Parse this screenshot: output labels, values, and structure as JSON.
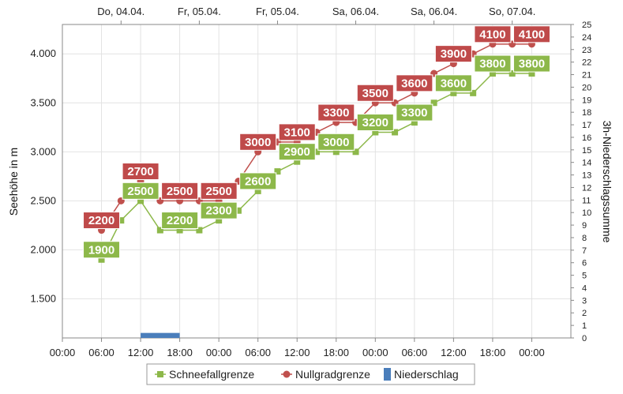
{
  "chart_data": {
    "type": "line",
    "ylabel": "Seehöhe in m",
    "y2label": "3h-Niederschlagssumme",
    "ylim": [
      1100,
      4300
    ],
    "y_ticks": [
      1500,
      2000,
      2500,
      3000,
      3500,
      4000
    ],
    "y_tick_labels": [
      "1.500",
      "2.000",
      "2.500",
      "3.000",
      "3.500",
      "4.000"
    ],
    "y2lim": [
      0,
      25
    ],
    "x_start_hour": 0,
    "x_end_hour": 78,
    "x_ticks": [
      {
        "h": 0,
        "label": "00:00"
      },
      {
        "h": 6,
        "label": "06:00"
      },
      {
        "h": 12,
        "label": "12:00"
      },
      {
        "h": 18,
        "label": "18:00"
      },
      {
        "h": 24,
        "label": "00:00"
      },
      {
        "h": 30,
        "label": "06:00"
      },
      {
        "h": 36,
        "label": "12:00"
      },
      {
        "h": 42,
        "label": "18:00"
      },
      {
        "h": 48,
        "label": "00:00"
      },
      {
        "h": 54,
        "label": "06:00"
      },
      {
        "h": 60,
        "label": "12:00"
      },
      {
        "h": 66,
        "label": "18:00"
      },
      {
        "h": 72,
        "label": "00:00"
      }
    ],
    "top_labels": [
      {
        "h": 9,
        "label": "Do, 04.04."
      },
      {
        "h": 21,
        "label": "Fr, 05.04."
      },
      {
        "h": 33,
        "label": "Fr, 05.04."
      },
      {
        "h": 45,
        "label": "Sa, 06.04."
      },
      {
        "h": 57,
        "label": "Sa, 06.04."
      },
      {
        "h": 69,
        "label": "So, 07.04."
      }
    ],
    "series": [
      {
        "name": "Schneefallgrenze",
        "color": "#8db84a",
        "label_color": "#8db84a",
        "x": [
          6,
          9,
          12,
          15,
          18,
          21,
          24,
          27,
          30,
          33,
          36,
          39,
          42,
          45,
          48,
          51,
          54,
          57,
          60,
          63,
          66,
          69,
          72
        ],
        "values": [
          1900,
          2300,
          2500,
          2200,
          2200,
          2200,
          2300,
          2400,
          2600,
          2800,
          2900,
          3000,
          3000,
          3000,
          3200,
          3200,
          3300,
          3500,
          3600,
          3600,
          3800,
          3800,
          3800
        ],
        "labels": [
          {
            "h": 6,
            "v": 1900,
            "text": "1900"
          },
          {
            "h": 12,
            "v": 2500,
            "text": "2500"
          },
          {
            "h": 18,
            "v": 2200,
            "text": "2200"
          },
          {
            "h": 24,
            "v": 2300,
            "text": "2300"
          },
          {
            "h": 30,
            "v": 2600,
            "text": "2600"
          },
          {
            "h": 36,
            "v": 2900,
            "text": "2900"
          },
          {
            "h": 42,
            "v": 3000,
            "text": "3000"
          },
          {
            "h": 48,
            "v": 3200,
            "text": "3200"
          },
          {
            "h": 54,
            "v": 3300,
            "text": "3300"
          },
          {
            "h": 60,
            "v": 3600,
            "text": "3600"
          },
          {
            "h": 66,
            "v": 3800,
            "text": "3800"
          },
          {
            "h": 72,
            "v": 3800,
            "text": "3800"
          }
        ]
      },
      {
        "name": "Nullgradgrenze",
        "color": "#c0504d",
        "label_color": "#bf4a4a",
        "x": [
          6,
          9,
          12,
          15,
          18,
          21,
          24,
          27,
          30,
          33,
          36,
          39,
          42,
          45,
          48,
          51,
          54,
          57,
          60,
          63,
          66,
          69,
          72
        ],
        "values": [
          2200,
          2500,
          2700,
          2500,
          2500,
          2500,
          2500,
          2700,
          3000,
          3100,
          3100,
          3200,
          3300,
          3300,
          3500,
          3500,
          3600,
          3800,
          3900,
          4000,
          4100,
          4100,
          4100
        ],
        "labels": [
          {
            "h": 6,
            "v": 2200,
            "text": "2200"
          },
          {
            "h": 12,
            "v": 2700,
            "text": "2700"
          },
          {
            "h": 18,
            "v": 2500,
            "text": "2500"
          },
          {
            "h": 24,
            "v": 2500,
            "text": "2500"
          },
          {
            "h": 30,
            "v": 3000,
            "text": "3000"
          },
          {
            "h": 36,
            "v": 3100,
            "text": "3100"
          },
          {
            "h": 42,
            "v": 3300,
            "text": "3300"
          },
          {
            "h": 48,
            "v": 3500,
            "text": "3500"
          },
          {
            "h": 54,
            "v": 3600,
            "text": "3600"
          },
          {
            "h": 60,
            "v": 3900,
            "text": "3900"
          },
          {
            "h": 66,
            "v": 4100,
            "text": "4100"
          },
          {
            "h": 72,
            "v": 4100,
            "text": "4100"
          }
        ]
      }
    ],
    "precipitation": {
      "name": "Niederschlag",
      "color": "#4a7ebb",
      "bars": [
        {
          "h": 12,
          "value": 0.4
        }
      ]
    },
    "legend": {
      "placement": "bottom",
      "items": [
        {
          "name": "Schneefallgrenze",
          "color": "#8db84a",
          "marker": "square"
        },
        {
          "name": "Nullgradgrenze",
          "color": "#c0504d",
          "marker": "circle"
        },
        {
          "name": "Niederschlag",
          "color": "#4a7ebb",
          "marker": "bar"
        }
      ]
    },
    "grid": true
  }
}
